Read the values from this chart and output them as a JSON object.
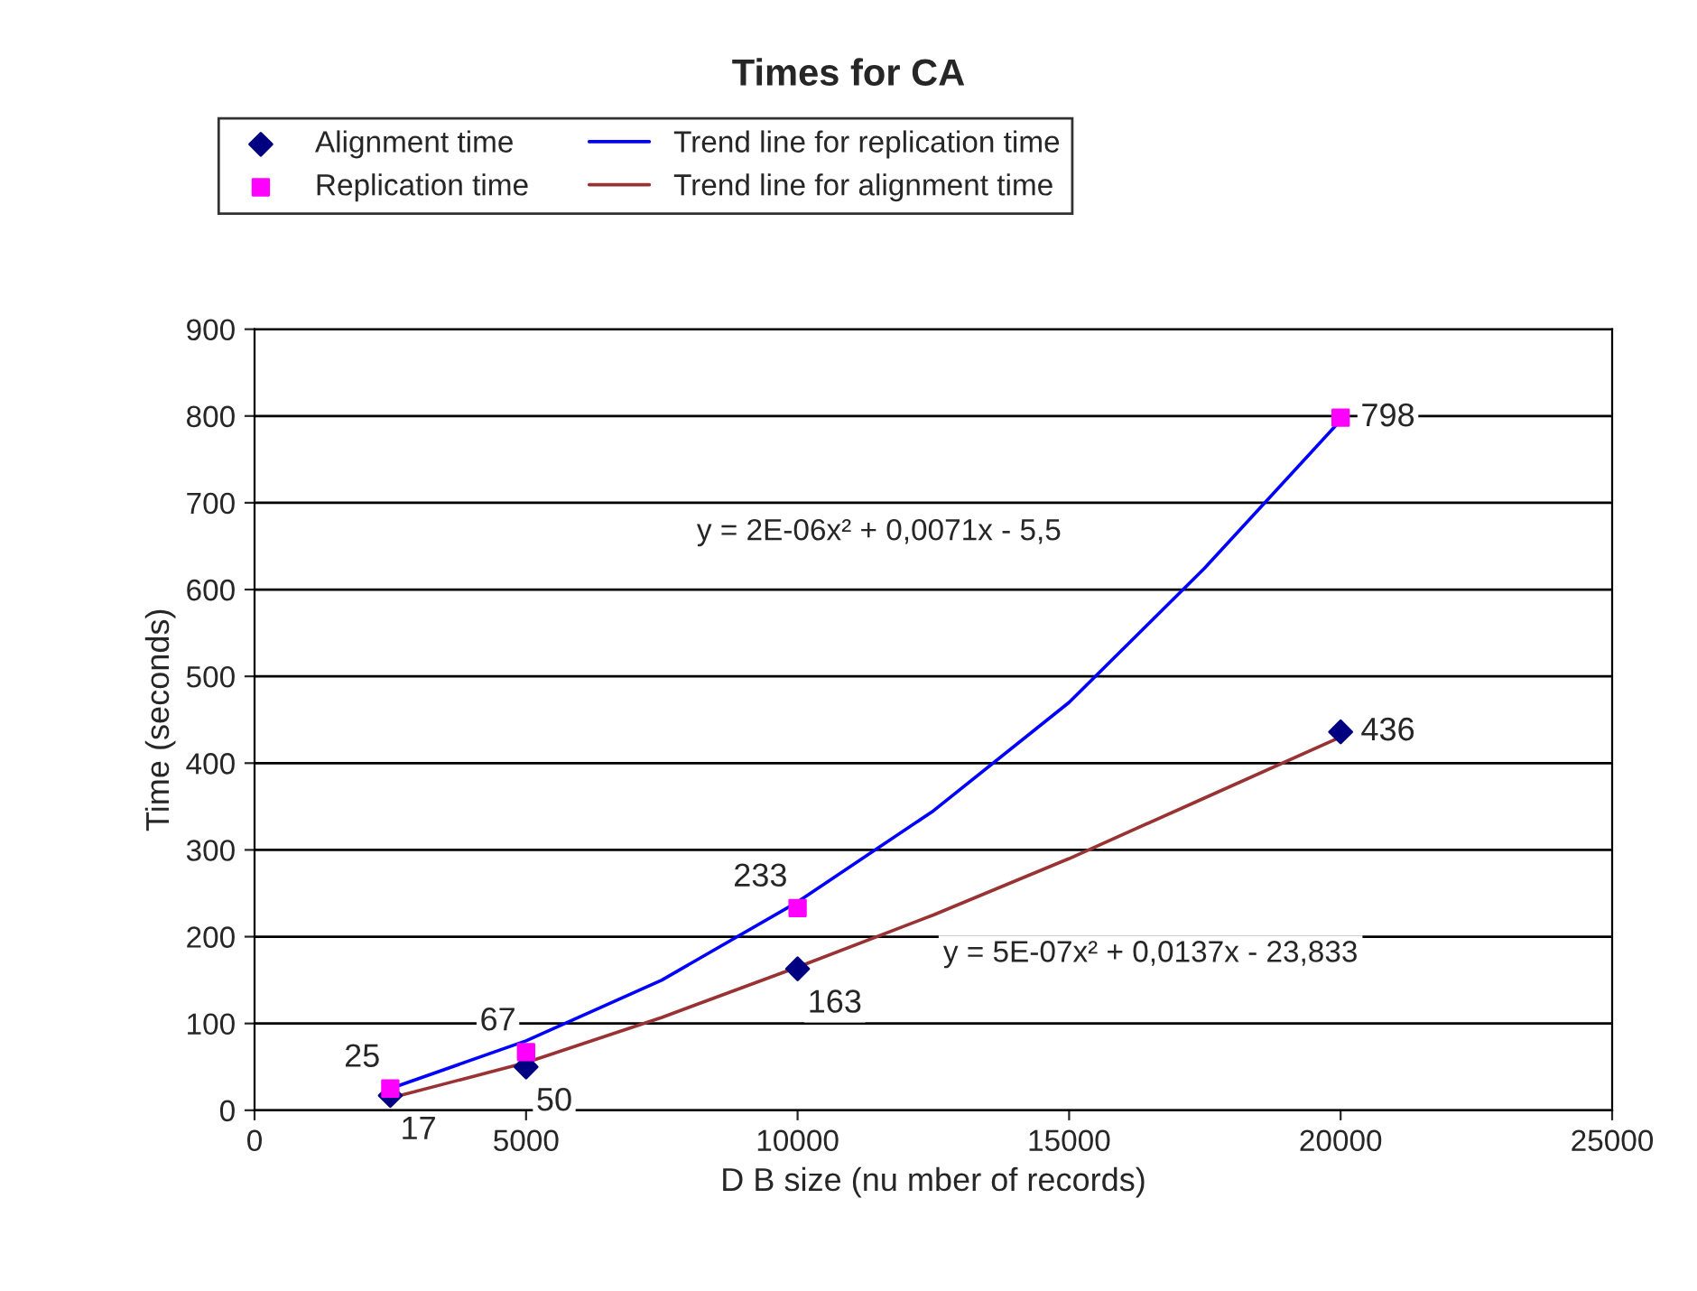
{
  "chart_data": {
    "type": "scatter",
    "title": "Times for CA",
    "xlabel": "D B size (nu mber of records)",
    "ylabel": "Time (seconds)",
    "xlim": [
      0,
      25000
    ],
    "xticks": [
      0,
      5000,
      10000,
      15000,
      20000,
      25000
    ],
    "ylim": [
      0,
      900
    ],
    "yticks": [
      0,
      100,
      200,
      300,
      400,
      500,
      600,
      700,
      800,
      900
    ],
    "grid": "y",
    "legend": "top",
    "series": [
      {
        "name": "Alignment time",
        "marker": "diamond",
        "color": "#000080",
        "x": [
          2500,
          5000,
          10000,
          20000
        ],
        "values": [
          17,
          50,
          163,
          436
        ],
        "value_labels": [
          "17",
          "50",
          "163",
          "436"
        ]
      },
      {
        "name": "Replication time",
        "marker": "square",
        "color": "#ff00ff",
        "x": [
          2500,
          5000,
          10000,
          20000
        ],
        "values": [
          25,
          67,
          233,
          798
        ],
        "value_labels": [
          "25",
          "67",
          "233",
          "798"
        ]
      },
      {
        "name": "Trend line for replication time",
        "type": "line",
        "marker": "none",
        "color": "#0000ff",
        "x": [
          2500,
          5000,
          7500,
          10000,
          12500,
          15000,
          17500,
          20000
        ],
        "values": [
          25,
          80,
          150,
          240,
          345,
          470,
          625,
          795
        ]
      },
      {
        "name": "Trend line for alignment time",
        "type": "line",
        "marker": "none",
        "color": "#993333",
        "x": [
          2500,
          5000,
          7500,
          10000,
          12500,
          15000,
          17500,
          20000
        ],
        "values": [
          14,
          55,
          107,
          165,
          225,
          290,
          360,
          430
        ]
      }
    ],
    "annotations": [
      "y = 2E-06x² + 0,0071x - 5,5",
      "y = 5E-07x² + 0,0137x - 23,833"
    ]
  }
}
